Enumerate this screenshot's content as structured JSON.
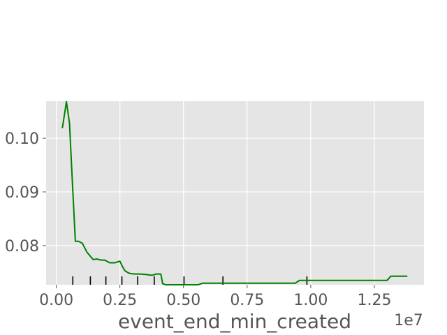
{
  "chart_data": {
    "type": "line",
    "title": "",
    "xlabel": "event_end_min_created",
    "ylabel": "",
    "x_offset_label": "1e7",
    "xlim": [
      -0.04,
      1.445
    ],
    "ylim": [
      0.0727,
      0.1069
    ],
    "xticks": [
      0.0,
      0.25,
      0.5,
      0.75,
      1.0,
      1.25
    ],
    "xtick_labels": [
      "0.00",
      "0.25",
      "0.50",
      "0.75",
      "1.00",
      "1.25"
    ],
    "yticks": [
      0.08,
      0.09,
      0.1
    ],
    "ytick_labels": [
      "0.08",
      "0.09",
      "0.10"
    ],
    "grid": true,
    "background": "#e5e5e5",
    "grid_color": "#ffffff",
    "series": [
      {
        "color": "#008000",
        "x": [
          0.024,
          0.04,
          0.052,
          0.064,
          0.075,
          0.088,
          0.103,
          0.12,
          0.145,
          0.16,
          0.175,
          0.19,
          0.21,
          0.23,
          0.25,
          0.26,
          0.27,
          0.28,
          0.29,
          0.31,
          0.33,
          0.355,
          0.37,
          0.38,
          0.392,
          0.411,
          0.418,
          0.43,
          0.445,
          0.46,
          0.48,
          0.5,
          0.515,
          0.537,
          0.558,
          0.575,
          0.6,
          0.65,
          0.7,
          0.8,
          0.9,
          0.94,
          0.955,
          0.965,
          0.98,
          1.0,
          1.05,
          1.1,
          1.15,
          1.2,
          1.25,
          1.3,
          1.315,
          1.35,
          1.38
        ],
        "y": [
          0.1019,
          0.1068,
          0.1028,
          0.0911,
          0.0808,
          0.0808,
          0.0804,
          0.0788,
          0.0774,
          0.0775,
          0.0773,
          0.0773,
          0.0768,
          0.0768,
          0.0771,
          0.0761,
          0.0753,
          0.075,
          0.0748,
          0.0747,
          0.0747,
          0.0746,
          0.0745,
          0.0745,
          0.0747,
          0.0747,
          0.0729,
          0.0727,
          0.0727,
          0.0727,
          0.0727,
          0.0727,
          0.0727,
          0.0727,
          0.0727,
          0.073,
          0.073,
          0.073,
          0.073,
          0.073,
          0.073,
          0.073,
          0.0735,
          0.0735,
          0.0735,
          0.0735,
          0.0735,
          0.0735,
          0.0735,
          0.0735,
          0.0735,
          0.0735,
          0.0743,
          0.0743,
          0.0743
        ]
      }
    ],
    "rug_x": [
      0.065,
      0.134,
      0.195,
      0.258,
      0.32,
      0.385,
      0.502,
      0.655,
      0.985
    ]
  }
}
